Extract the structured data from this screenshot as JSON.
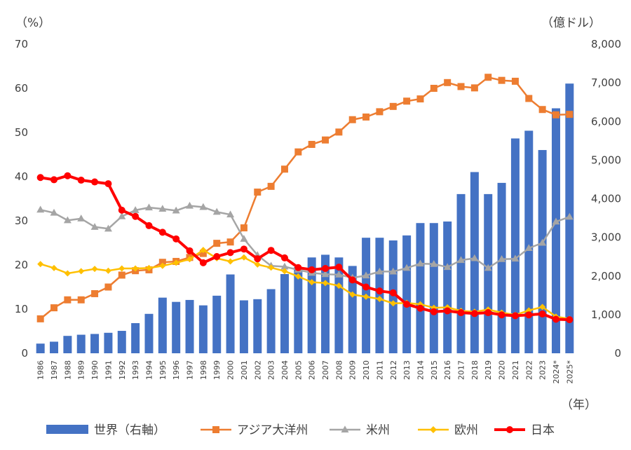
{
  "chart_data": {
    "type": "bar+line",
    "left_unit": "（%）",
    "right_unit": "（億ドル）",
    "x_unit": "（年）",
    "categories": [
      "1986",
      "1987",
      "1988",
      "1989",
      "1990",
      "1991",
      "1992",
      "1993",
      "1994",
      "1995",
      "1996",
      "1997",
      "1998",
      "1999",
      "2000",
      "2001",
      "2002",
      "2003",
      "2004",
      "2005",
      "2006",
      "2007",
      "2008",
      "2009",
      "2010",
      "2011",
      "2012",
      "2013",
      "2014",
      "2015",
      "2016",
      "2017",
      "2018",
      "2019",
      "2020",
      "2021",
      "2022",
      "2023",
      "2024*",
      "2025*"
    ],
    "left_axis": {
      "min": 0,
      "max": 70,
      "ticks": [
        "0",
        "10",
        "20",
        "30",
        "40",
        "50",
        "60",
        "70"
      ]
    },
    "right_axis": {
      "min": 0,
      "max": 8000,
      "ticks": [
        "0",
        "1,000",
        "2,000",
        "3,000",
        "4,000",
        "5,000",
        "6,000",
        "7,000",
        "8,000"
      ]
    },
    "bar_series": {
      "name": "世界（右軸）",
      "axis": "right",
      "color": "#4472C4",
      "values": [
        250,
        300,
        450,
        480,
        500,
        530,
        580,
        780,
        1020,
        1440,
        1330,
        1380,
        1240,
        1490,
        2040,
        1370,
        1400,
        1660,
        2050,
        2230,
        2480,
        2550,
        2480,
        2260,
        2990,
        2990,
        2920,
        3050,
        3370,
        3370,
        3410,
        4120,
        4690,
        4120,
        4410,
        5560,
        5760,
        5260,
        6340,
        6980
      ]
    },
    "line_series": [
      {
        "name": "アジア大洋州",
        "color": "#ED7D31",
        "marker": "square",
        "values": [
          7.8,
          10.3,
          12.1,
          12.1,
          13.5,
          15.0,
          17.7,
          18.7,
          18.9,
          20.6,
          20.8,
          21.7,
          22.6,
          24.9,
          25.2,
          28.4,
          36.5,
          37.8,
          41.7,
          45.6,
          47.3,
          48.3,
          50.1,
          52.9,
          53.5,
          54.7,
          55.9,
          57.1,
          57.6,
          60.0,
          61.3,
          60.4,
          60.1,
          62.5,
          61.8,
          61.6,
          57.7,
          55.2,
          54.0,
          54.1
        ]
      },
      {
        "name": "米州",
        "color": "#A5A5A5",
        "marker": "triangle",
        "values": [
          32.5,
          31.8,
          30.1,
          30.5,
          28.6,
          28.2,
          31.0,
          32.4,
          33.0,
          32.7,
          32.3,
          33.4,
          33.1,
          32.0,
          31.4,
          25.9,
          22.2,
          19.8,
          19.6,
          18.9,
          18.2,
          17.9,
          17.8,
          17.1,
          17.6,
          18.5,
          18.5,
          19.3,
          20.3,
          20.2,
          19.5,
          21.1,
          21.5,
          19.3,
          21.3,
          21.4,
          23.8,
          25.0,
          29.8,
          30.9
        ]
      },
      {
        "name": "欧州",
        "color": "#FFC000",
        "marker": "diamond",
        "values": [
          20.2,
          19.3,
          18.1,
          18.6,
          19.1,
          18.7,
          19.2,
          19.2,
          19.3,
          19.8,
          20.5,
          21.3,
          23.4,
          21.5,
          20.8,
          21.7,
          20.1,
          19.4,
          18.6,
          17.4,
          16.1,
          15.9,
          15.3,
          13.3,
          12.8,
          12.3,
          11.3,
          11.4,
          11.1,
          10.3,
          10.4,
          9.6,
          9.4,
          9.9,
          9.2,
          8.7,
          9.7,
          10.5,
          8.3,
          7.8
        ]
      },
      {
        "name": "日本",
        "color": "#FF0000",
        "marker": "circle",
        "values": [
          39.8,
          39.3,
          40.2,
          39.2,
          38.8,
          38.4,
          32.4,
          31.0,
          28.9,
          27.4,
          25.9,
          23.2,
          20.5,
          21.9,
          22.8,
          23.6,
          21.4,
          23.3,
          21.6,
          19.4,
          18.9,
          19.2,
          19.5,
          16.6,
          15.0,
          14.1,
          13.7,
          11.1,
          10.2,
          9.4,
          9.6,
          9.2,
          9.0,
          9.2,
          8.7,
          8.5,
          8.7,
          8.9,
          7.7,
          7.6
        ]
      }
    ],
    "legend_position": "bottom"
  }
}
